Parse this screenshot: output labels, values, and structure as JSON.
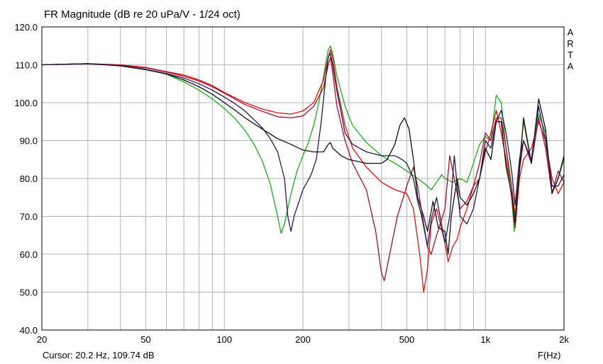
{
  "app": {
    "vendor_mark": [
      "A",
      "R",
      "T",
      "A"
    ]
  },
  "status": {
    "cursor": "Cursor: 20.2 Hz, 109.74 dB"
  },
  "chart_data": {
    "type": "line",
    "title": "FR Magnitude (dB re 20 uPa/V - 1/24 oct)",
    "xlabel": "F(Hz)",
    "ylabel": "",
    "x_scale": "log",
    "xlim": [
      20,
      2000
    ],
    "ylim": [
      40,
      120
    ],
    "grid": true,
    "x_ticks": [
      20,
      50,
      100,
      200,
      500,
      1000,
      2000
    ],
    "x_tick_labels": [
      "20",
      "50",
      "100",
      "200",
      "500",
      "1k",
      "2k"
    ],
    "y_ticks": [
      40,
      50,
      60,
      70,
      80,
      90,
      100,
      110,
      120
    ],
    "y_tick_labels": [
      "40.0",
      "50.0",
      "60.0",
      "70.0",
      "80.0",
      "90.0",
      "100.0",
      "110.0",
      "120.0"
    ],
    "colors": {
      "axes": "#000000",
      "grid": "#b4b4b4",
      "green": "#1faa1f",
      "red": "#e01010",
      "darkred": "#a0102a",
      "black": "#111111",
      "navy": "#28184f"
    },
    "series": [
      {
        "color_key": "green",
        "points": [
          [
            20,
            110
          ],
          [
            30,
            110.3
          ],
          [
            40,
            109.8
          ],
          [
            50,
            108.8
          ],
          [
            60,
            107.5
          ],
          [
            70,
            105.5
          ],
          [
            80,
            103.3
          ],
          [
            90,
            101
          ],
          [
            100,
            98.5
          ],
          [
            110,
            95.8
          ],
          [
            120,
            92.7
          ],
          [
            130,
            89
          ],
          [
            140,
            84.5
          ],
          [
            150,
            78.5
          ],
          [
            160,
            70
          ],
          [
            165,
            65.5
          ],
          [
            170,
            68
          ],
          [
            180,
            76
          ],
          [
            190,
            82
          ],
          [
            200,
            86
          ],
          [
            210,
            89.5
          ],
          [
            220,
            94
          ],
          [
            230,
            100
          ],
          [
            240,
            107
          ],
          [
            250,
            114
          ],
          [
            255,
            115
          ],
          [
            260,
            113
          ],
          [
            270,
            107
          ],
          [
            290,
            99
          ],
          [
            310,
            94
          ],
          [
            350,
            89.5
          ],
          [
            400,
            86
          ],
          [
            450,
            84
          ],
          [
            500,
            82
          ],
          [
            550,
            80
          ],
          [
            600,
            78
          ],
          [
            620,
            77
          ],
          [
            650,
            79
          ],
          [
            680,
            81
          ],
          [
            700,
            80
          ],
          [
            750,
            79
          ],
          [
            800,
            80
          ],
          [
            850,
            79
          ],
          [
            900,
            84
          ],
          [
            950,
            89
          ],
          [
            1000,
            91
          ],
          [
            1050,
            90
          ],
          [
            1100,
            102
          ],
          [
            1150,
            100
          ],
          [
            1200,
            88
          ],
          [
            1260,
            75
          ],
          [
            1290,
            66
          ],
          [
            1330,
            80
          ],
          [
            1400,
            95
          ],
          [
            1500,
            84
          ],
          [
            1600,
            97
          ],
          [
            1700,
            92
          ],
          [
            1800,
            76
          ],
          [
            1900,
            80
          ],
          [
            2000,
            85
          ]
        ]
      },
      {
        "color_key": "red",
        "points": [
          [
            20,
            110
          ],
          [
            30,
            110.3
          ],
          [
            40,
            110
          ],
          [
            50,
            109.3
          ],
          [
            60,
            108.2
          ],
          [
            70,
            107.3
          ],
          [
            80,
            106
          ],
          [
            90,
            104.5
          ],
          [
            100,
            102.7
          ],
          [
            120,
            100
          ],
          [
            140,
            98.3
          ],
          [
            160,
            97.3
          ],
          [
            180,
            97
          ],
          [
            200,
            97.8
          ],
          [
            220,
            100
          ],
          [
            240,
            106
          ],
          [
            250,
            112
          ],
          [
            255,
            114
          ],
          [
            260,
            112
          ],
          [
            270,
            104
          ],
          [
            290,
            94
          ],
          [
            310,
            88
          ],
          [
            350,
            83
          ],
          [
            400,
            79
          ],
          [
            450,
            77
          ],
          [
            500,
            76
          ],
          [
            530,
            72
          ],
          [
            560,
            60
          ],
          [
            580,
            50
          ],
          [
            600,
            56
          ],
          [
            620,
            68
          ],
          [
            650,
            72
          ],
          [
            700,
            63
          ],
          [
            720,
            58
          ],
          [
            750,
            62
          ],
          [
            780,
            64
          ],
          [
            800,
            67
          ],
          [
            850,
            72
          ],
          [
            900,
            78
          ],
          [
            950,
            80
          ],
          [
            1000,
            87
          ],
          [
            1050,
            92
          ],
          [
            1100,
            98
          ],
          [
            1150,
            92
          ],
          [
            1200,
            85
          ],
          [
            1260,
            75
          ],
          [
            1300,
            67
          ],
          [
            1350,
            80
          ],
          [
            1400,
            85
          ],
          [
            1500,
            88
          ],
          [
            1600,
            95
          ],
          [
            1700,
            90
          ],
          [
            1800,
            80
          ],
          [
            1900,
            76
          ],
          [
            2000,
            79
          ]
        ]
      },
      {
        "color_key": "darkred",
        "points": [
          [
            20,
            110
          ],
          [
            30,
            110.3
          ],
          [
            40,
            109.9
          ],
          [
            50,
            109.2
          ],
          [
            60,
            108.1
          ],
          [
            70,
            107
          ],
          [
            80,
            105.7
          ],
          [
            90,
            104.2
          ],
          [
            100,
            102.5
          ],
          [
            120,
            99.5
          ],
          [
            140,
            97.7
          ],
          [
            160,
            96.3
          ],
          [
            180,
            96
          ],
          [
            200,
            96.5
          ],
          [
            220,
            99
          ],
          [
            240,
            104
          ],
          [
            250,
            110
          ],
          [
            255,
            112
          ],
          [
            260,
            108
          ],
          [
            270,
            99
          ],
          [
            290,
            90
          ],
          [
            310,
            84
          ],
          [
            350,
            77
          ],
          [
            380,
            66
          ],
          [
            400,
            55
          ],
          [
            410,
            53
          ],
          [
            430,
            60
          ],
          [
            460,
            70
          ],
          [
            500,
            78
          ],
          [
            530,
            83
          ],
          [
            550,
            78
          ],
          [
            580,
            68
          ],
          [
            600,
            62
          ],
          [
            620,
            60
          ],
          [
            650,
            65
          ],
          [
            700,
            72
          ],
          [
            730,
            86
          ],
          [
            760,
            80
          ],
          [
            800,
            72
          ],
          [
            850,
            74
          ],
          [
            900,
            78
          ],
          [
            950,
            84
          ],
          [
            1000,
            92
          ],
          [
            1050,
            90
          ],
          [
            1100,
            96
          ],
          [
            1150,
            96
          ],
          [
            1200,
            88
          ],
          [
            1260,
            78
          ],
          [
            1300,
            70
          ],
          [
            1350,
            82
          ],
          [
            1400,
            90
          ],
          [
            1500,
            84
          ],
          [
            1600,
            96
          ],
          [
            1700,
            88
          ],
          [
            1800,
            76
          ],
          [
            1900,
            82
          ],
          [
            2000,
            79
          ]
        ]
      },
      {
        "color_key": "black",
        "points": [
          [
            20,
            110
          ],
          [
            30,
            110.3
          ],
          [
            40,
            109.7
          ],
          [
            50,
            108.7
          ],
          [
            60,
            107.6
          ],
          [
            70,
            106
          ],
          [
            80,
            104.2
          ],
          [
            90,
            102.2
          ],
          [
            100,
            100
          ],
          [
            110,
            98
          ],
          [
            120,
            96
          ],
          [
            140,
            93
          ],
          [
            160,
            90.5
          ],
          [
            180,
            89
          ],
          [
            200,
            87.5
          ],
          [
            220,
            87
          ],
          [
            240,
            87
          ],
          [
            250,
            89
          ],
          [
            255,
            89.5
          ],
          [
            260,
            88
          ],
          [
            280,
            86
          ],
          [
            300,
            85
          ],
          [
            350,
            84
          ],
          [
            400,
            84
          ],
          [
            420,
            85
          ],
          [
            450,
            89
          ],
          [
            470,
            94
          ],
          [
            490,
            96
          ],
          [
            510,
            93
          ],
          [
            530,
            85
          ],
          [
            550,
            75
          ],
          [
            580,
            70
          ],
          [
            600,
            66
          ],
          [
            630,
            74
          ],
          [
            660,
            67
          ],
          [
            700,
            66
          ],
          [
            720,
            60
          ],
          [
            740,
            70
          ],
          [
            780,
            80
          ],
          [
            800,
            75
          ],
          [
            850,
            73
          ],
          [
            900,
            76
          ],
          [
            950,
            80
          ],
          [
            1000,
            88
          ],
          [
            1050,
            85
          ],
          [
            1100,
            95
          ],
          [
            1150,
            95
          ],
          [
            1200,
            83
          ],
          [
            1260,
            76
          ],
          [
            1300,
            68
          ],
          [
            1350,
            82
          ],
          [
            1400,
            96
          ],
          [
            1500,
            84
          ],
          [
            1600,
            101
          ],
          [
            1700,
            93
          ],
          [
            1800,
            76
          ],
          [
            1900,
            80
          ],
          [
            2000,
            86
          ]
        ]
      },
      {
        "color_key": "navy",
        "points": [
          [
            20,
            110
          ],
          [
            30,
            110.3
          ],
          [
            40,
            109.8
          ],
          [
            50,
            108.8
          ],
          [
            60,
            107.7
          ],
          [
            70,
            106.5
          ],
          [
            80,
            105
          ],
          [
            90,
            103.3
          ],
          [
            100,
            101.5
          ],
          [
            110,
            99.7
          ],
          [
            120,
            97.8
          ],
          [
            130,
            95.5
          ],
          [
            140,
            93.3
          ],
          [
            150,
            90.5
          ],
          [
            160,
            87
          ],
          [
            170,
            80
          ],
          [
            175,
            70
          ],
          [
            180,
            66
          ],
          [
            185,
            70
          ],
          [
            200,
            77
          ],
          [
            215,
            81
          ],
          [
            225,
            85
          ],
          [
            235,
            95
          ],
          [
            245,
            107
          ],
          [
            250,
            112
          ],
          [
            255,
            113
          ],
          [
            260,
            110
          ],
          [
            270,
            103
          ],
          [
            290,
            92
          ],
          [
            310,
            89
          ],
          [
            350,
            87
          ],
          [
            400,
            86
          ],
          [
            450,
            86
          ],
          [
            480,
            85
          ],
          [
            500,
            84
          ],
          [
            530,
            80
          ],
          [
            550,
            74
          ],
          [
            570,
            70
          ],
          [
            600,
            62
          ],
          [
            620,
            69
          ],
          [
            650,
            75
          ],
          [
            700,
            63
          ],
          [
            730,
            70
          ],
          [
            760,
            86
          ],
          [
            800,
            70
          ],
          [
            850,
            68
          ],
          [
            900,
            72
          ],
          [
            950,
            80
          ],
          [
            1000,
            90
          ],
          [
            1050,
            88
          ],
          [
            1100,
            95
          ],
          [
            1150,
            98
          ],
          [
            1200,
            92
          ],
          [
            1260,
            82
          ],
          [
            1300,
            73
          ],
          [
            1350,
            85
          ],
          [
            1400,
            90
          ],
          [
            1500,
            85
          ],
          [
            1600,
            99
          ],
          [
            1700,
            90
          ],
          [
            1800,
            78
          ],
          [
            1900,
            78
          ],
          [
            2000,
            81
          ]
        ]
      }
    ]
  }
}
